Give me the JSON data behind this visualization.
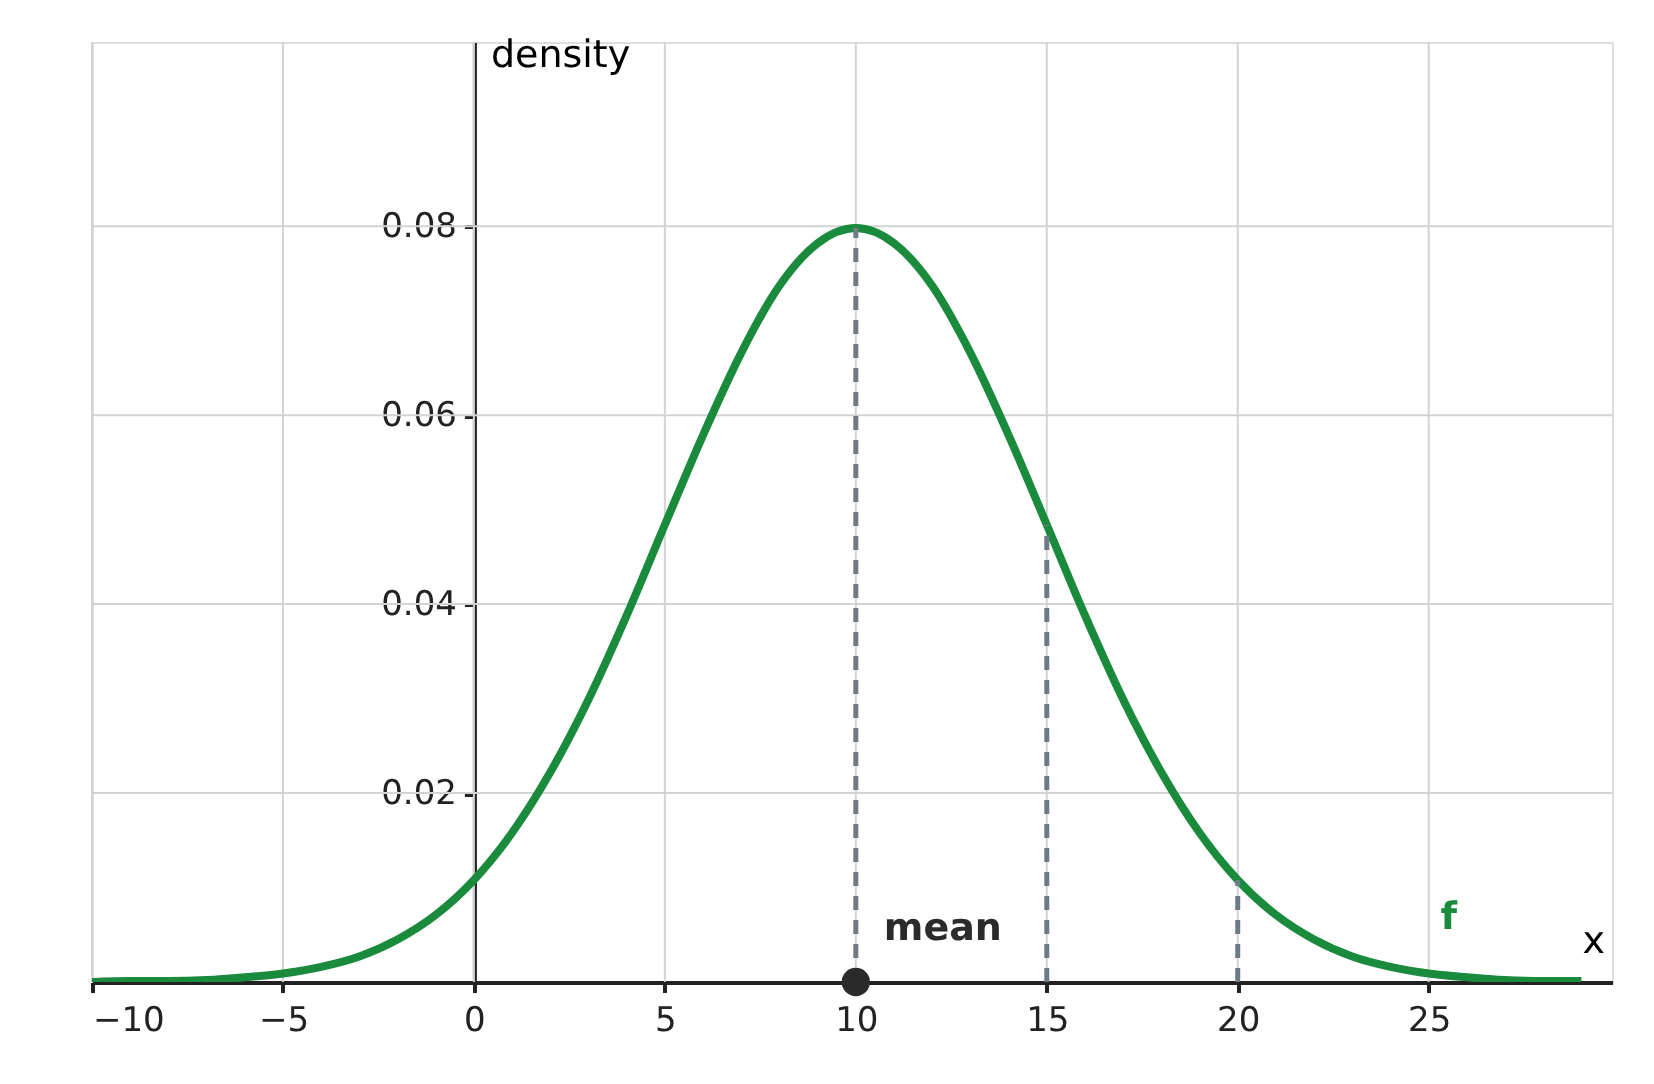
{
  "chart_data": {
    "type": "line",
    "xlabel": "x",
    "ylabel": "density",
    "x": [
      -10,
      -9,
      -8,
      -7,
      -6,
      -5,
      -4,
      -3,
      -2,
      -1,
      0,
      1,
      2,
      3,
      4,
      5,
      6,
      7,
      8,
      9,
      10,
      11,
      12,
      13,
      14,
      15,
      16,
      17,
      18,
      19,
      20,
      21,
      22,
      23,
      24,
      25,
      26,
      27,
      28,
      29
    ],
    "series": [
      {
        "name": "f",
        "color": "#1a8a3c",
        "line_style": "solid",
        "values": [
          0.0,
          0.0001,
          0.0001,
          0.0002,
          0.0005,
          0.0009,
          0.0016,
          0.0027,
          0.0045,
          0.0071,
          0.0108,
          0.0158,
          0.0222,
          0.0299,
          0.0388,
          0.0484,
          0.0579,
          0.0666,
          0.0737,
          0.0782,
          0.0798,
          0.0782,
          0.0737,
          0.0666,
          0.0579,
          0.0484,
          0.0388,
          0.0299,
          0.0222,
          0.0158,
          0.0108,
          0.0071,
          0.0045,
          0.0027,
          0.0016,
          0.0009,
          0.0005,
          0.0002,
          0.0001,
          0.0001
        ]
      },
      {
        "color": "#6e7a85",
        "type": "line",
        "line_style": "dashed",
        "x": [
          10,
          10
        ],
        "values": [
          0,
          0.0798
        ]
      },
      {
        "color": "#6e7a85",
        "type": "line",
        "line_style": "dashed",
        "x": [
          15,
          15
        ],
        "values": [
          0,
          0.0484
        ]
      },
      {
        "color": "#6e7a85",
        "type": "line",
        "line_style": "dashed",
        "x": [
          20,
          20
        ],
        "values": [
          0,
          0.0108
        ]
      },
      {
        "color": "#2b2b2b",
        "type": "scatter",
        "marker": "circle",
        "x": [
          10
        ],
        "values": [
          0
        ]
      }
    ],
    "annotations": [
      {
        "text": "mean",
        "x": 10,
        "y": 0
      }
    ],
    "xlim": [
      -10,
      29.8
    ],
    "ylim": [
      0,
      0.0995
    ],
    "xticks": [
      {
        "value": -10,
        "label": "−10"
      },
      {
        "value": -5,
        "label": "−5"
      },
      0,
      5,
      10,
      15,
      20,
      25
    ],
    "yticks": [
      0.02,
      0.04,
      0.06,
      0.08
    ],
    "grid": true
  }
}
